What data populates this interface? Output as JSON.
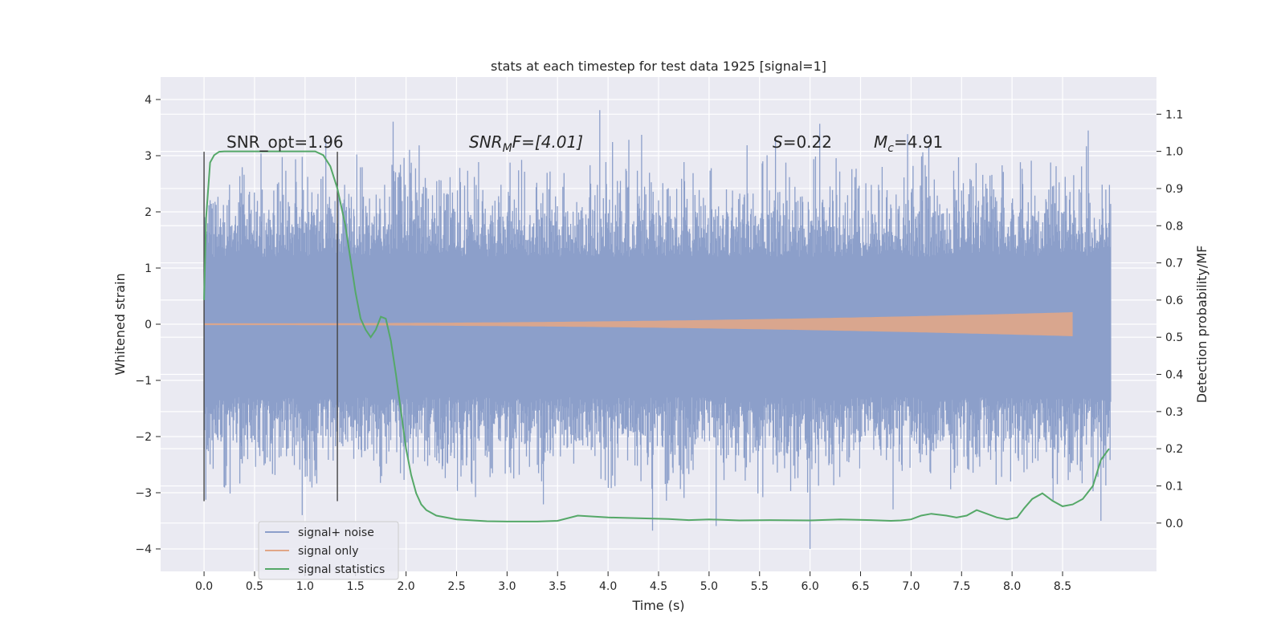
{
  "chart_data": {
    "type": "line",
    "title": "stats at each timestep for test data 1925 [signal=1]",
    "xlabel": "Time (s)",
    "ylabel": "Whitened strain",
    "ylabel_right": "Detection probability/MF",
    "xlim": [
      -0.43,
      9.43
    ],
    "ylim": [
      -4.4,
      4.4
    ],
    "ylim_right": [
      -0.13,
      1.2
    ],
    "x_ticks": [
      "0.0",
      "0.5",
      "1.0",
      "1.5",
      "2.0",
      "2.5",
      "3.0",
      "3.5",
      "4.0",
      "4.5",
      "5.0",
      "5.5",
      "6.0",
      "6.5",
      "7.0",
      "7.5",
      "8.0",
      "8.5"
    ],
    "y_ticks": [
      "−4",
      "−3",
      "−2",
      "−1",
      "0",
      "1",
      "2",
      "3",
      "4"
    ],
    "y_ticks_right": [
      "0.0",
      "0.1",
      "0.2",
      "0.3",
      "0.4",
      "0.5",
      "0.6",
      "0.7",
      "0.8",
      "0.9",
      "1.0",
      "1.1"
    ],
    "grid": true,
    "legend_position": "lower-left",
    "annotations": {
      "snr_opt": "SNR_opt=1.96",
      "snr_mf_main": "SNR",
      "snr_mf_sub": "M",
      "snr_mf_tail": "F=[4.01]",
      "s_main": "S",
      "s_tail": "=0.22",
      "mc_main": "M",
      "mc_sub": "c",
      "mc_tail": "=4.91"
    },
    "vertical_markers_s": [
      0.0,
      1.32
    ],
    "series": [
      {
        "name": "signal+ noise",
        "color": "#8c9fca",
        "kind": "noise-band",
        "x_range": [
          0.0,
          8.98
        ],
        "core_band": [
          -1.3,
          1.2
        ],
        "peak_range": [
          -4.0,
          3.9
        ]
      },
      {
        "name": "signal only",
        "color": "#e1a687",
        "kind": "chirp",
        "x_range": [
          0.0,
          8.62
        ],
        "final_amplitude": 0.2
      },
      {
        "name": "signal statistics",
        "color": "#55a868",
        "kind": "line",
        "axis": "right",
        "x": [
          0.0,
          0.02,
          0.06,
          0.1,
          0.15,
          0.2,
          0.3,
          0.5,
          0.8,
          1.0,
          1.1,
          1.18,
          1.25,
          1.32,
          1.4,
          1.45,
          1.5,
          1.55,
          1.6,
          1.65,
          1.7,
          1.75,
          1.8,
          1.85,
          1.9,
          1.95,
          2.0,
          2.05,
          2.1,
          2.15,
          2.2,
          2.3,
          2.5,
          2.8,
          3.0,
          3.3,
          3.5,
          3.7,
          4.0,
          4.3,
          4.6,
          4.8,
          5.0,
          5.3,
          5.6,
          6.0,
          6.3,
          6.6,
          6.8,
          6.9,
          7.0,
          7.1,
          7.2,
          7.35,
          7.45,
          7.55,
          7.65,
          7.75,
          7.85,
          7.95,
          8.05,
          8.12,
          8.2,
          8.3,
          8.4,
          8.5,
          8.6,
          8.7,
          8.8,
          8.88,
          8.96
        ],
        "y": [
          0.6,
          0.82,
          0.97,
          0.99,
          0.999,
          1.0,
          1.0,
          1.0,
          1.0,
          1.0,
          1.0,
          0.99,
          0.96,
          0.9,
          0.8,
          0.71,
          0.62,
          0.55,
          0.52,
          0.5,
          0.52,
          0.555,
          0.55,
          0.49,
          0.4,
          0.3,
          0.2,
          0.13,
          0.08,
          0.05,
          0.035,
          0.02,
          0.01,
          0.005,
          0.004,
          0.004,
          0.006,
          0.02,
          0.015,
          0.013,
          0.011,
          0.008,
          0.01,
          0.007,
          0.008,
          0.007,
          0.01,
          0.008,
          0.006,
          0.007,
          0.01,
          0.02,
          0.025,
          0.02,
          0.015,
          0.02,
          0.035,
          0.025,
          0.015,
          0.01,
          0.015,
          0.04,
          0.065,
          0.08,
          0.06,
          0.045,
          0.05,
          0.065,
          0.1,
          0.17,
          0.2
        ]
      }
    ]
  }
}
